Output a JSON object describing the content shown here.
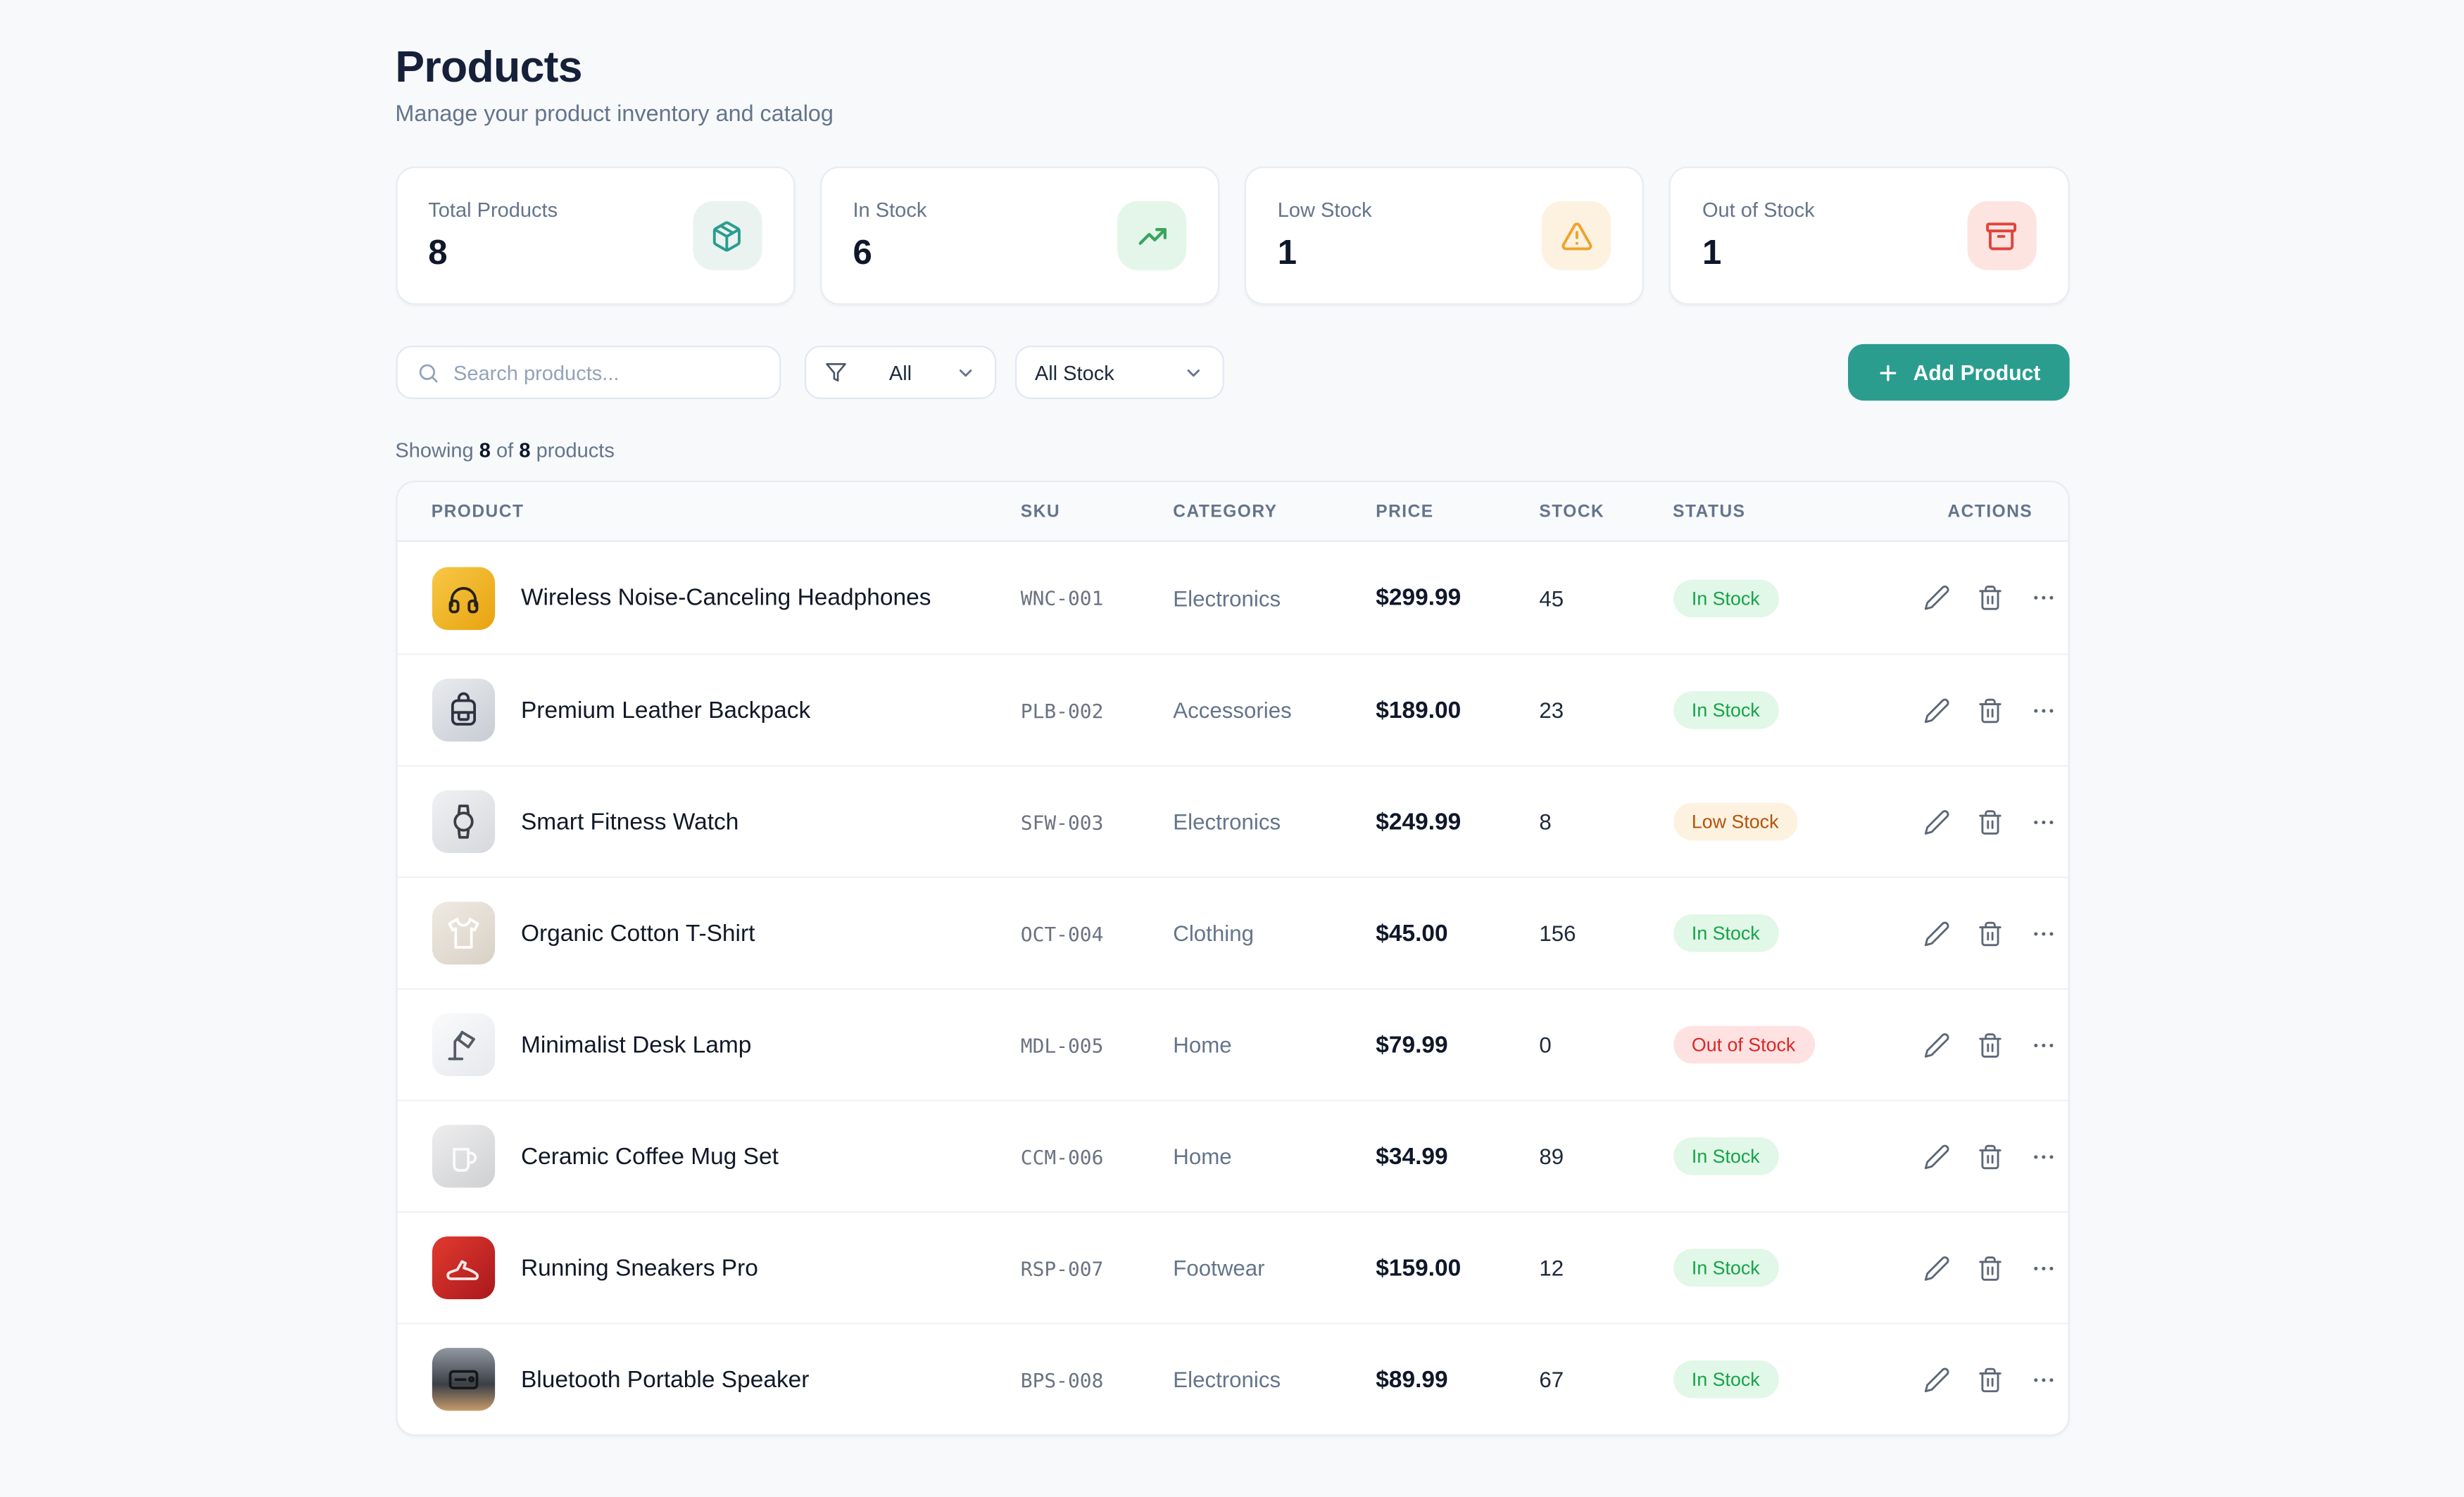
{
  "page": {
    "title": "Products",
    "subtitle": "Manage your product inventory and catalog",
    "background_color": "#f7f9fb",
    "accent_color": "#2a9d8f"
  },
  "stats": {
    "cards": [
      {
        "label": "Total Products",
        "value": "8",
        "icon": "package-icon",
        "icon_color": "#2a9d8f",
        "icon_bg": "#eaf3f0"
      },
      {
        "label": "In Stock",
        "value": "6",
        "icon": "trending-up-icon",
        "icon_color": "#3ba45f",
        "icon_bg": "#e4f6e9"
      },
      {
        "label": "Low Stock",
        "value": "1",
        "icon": "alert-triangle-icon",
        "icon_color": "#efa32b",
        "icon_bg": "#fdf1e0"
      },
      {
        "label": "Out of Stock",
        "value": "1",
        "icon": "archive-icon",
        "icon_color": "#e0443c",
        "icon_bg": "#fde4e1"
      }
    ]
  },
  "toolbar": {
    "search_placeholder": "Search products...",
    "category_filter": {
      "value": "All",
      "icon": "filter-icon"
    },
    "stock_filter": {
      "value": "All Stock"
    },
    "add_button_label": "Add Product",
    "add_button_color": "#2a9d8f"
  },
  "summary": {
    "prefix": "Showing",
    "shown": "8",
    "middle": "of",
    "total": "8",
    "suffix": "products"
  },
  "table": {
    "columns": [
      "Product",
      "SKU",
      "Category",
      "Price",
      "Stock",
      "Status",
      "Actions"
    ],
    "status_colors": {
      "In Stock": {
        "bg": "#e1f7e7",
        "text": "#16a34a"
      },
      "Low Stock": {
        "bg": "#fdf1e0",
        "text": "#b45309"
      },
      "Out of Stock": {
        "bg": "#fee2e2",
        "text": "#dc2626"
      }
    },
    "products": [
      {
        "name": "Wireless Noise-Canceling Headphones",
        "sku": "WNC-001",
        "category": "Electronics",
        "price": "$299.99",
        "stock": "45",
        "status": "In Stock",
        "status_variant": "in",
        "thumb": {
          "icon": "headphones-icon",
          "gradient": "linear-gradient(135deg,#f7c846,#e8a30f)",
          "fg": "#26221c"
        }
      },
      {
        "name": "Premium Leather Backpack",
        "sku": "PLB-002",
        "category": "Accessories",
        "price": "$189.00",
        "stock": "23",
        "status": "In Stock",
        "status_variant": "in",
        "thumb": {
          "icon": "backpack-icon",
          "gradient": "linear-gradient(145deg,#e9ebef,#c7ccd3)",
          "fg": "#2c3340"
        }
      },
      {
        "name": "Smart Fitness Watch",
        "sku": "SFW-003",
        "category": "Electronics",
        "price": "$249.99",
        "stock": "8",
        "status": "Low Stock",
        "status_variant": "low",
        "thumb": {
          "icon": "watch-icon",
          "gradient": "linear-gradient(145deg,#f0f1f3,#d5d8dd)",
          "fg": "#3a3f47"
        }
      },
      {
        "name": "Organic Cotton T-Shirt",
        "sku": "OCT-004",
        "category": "Clothing",
        "price": "$45.00",
        "stock": "156",
        "status": "In Stock",
        "status_variant": "in",
        "thumb": {
          "icon": "tshirt-icon",
          "gradient": "linear-gradient(145deg,#efeae2,#d8d1c6)",
          "fg": "#fdfdfc"
        }
      },
      {
        "name": "Minimalist Desk Lamp",
        "sku": "MDL-005",
        "category": "Home",
        "price": "$79.99",
        "stock": "0",
        "status": "Out of Stock",
        "status_variant": "out",
        "thumb": {
          "icon": "desk-lamp-icon",
          "gradient": "linear-gradient(145deg,#fbfbfc,#e5e8ed)",
          "fg": "#555b66"
        }
      },
      {
        "name": "Ceramic Coffee Mug Set",
        "sku": "CCM-006",
        "category": "Home",
        "price": "$34.99",
        "stock": "89",
        "status": "In Stock",
        "status_variant": "in",
        "thumb": {
          "icon": "mug-icon",
          "gradient": "linear-gradient(145deg,#ededee,#cfd0d2)",
          "fg": "#fafafa"
        }
      },
      {
        "name": "Running Sneakers Pro",
        "sku": "RSP-007",
        "category": "Footwear",
        "price": "$159.00",
        "stock": "12",
        "status": "In Stock",
        "status_variant": "in",
        "thumb": {
          "icon": "sneaker-icon",
          "gradient": "linear-gradient(135deg,#e23a2e,#a9181d)",
          "fg": "#f6e9e7"
        }
      },
      {
        "name": "Bluetooth Portable Speaker",
        "sku": "BPS-008",
        "category": "Electronics",
        "price": "$89.99",
        "stock": "67",
        "status": "In Stock",
        "status_variant": "in",
        "thumb": {
          "icon": "speaker-icon",
          "gradient": "linear-gradient(180deg,#9298a1 0%,#3b4047 58%,#c79b6c 100%)",
          "fg": "#15171b"
        }
      }
    ],
    "row_actions": [
      {
        "label": "edit",
        "icon": "pencil-icon"
      },
      {
        "label": "delete",
        "icon": "trash-icon"
      },
      {
        "label": "more",
        "icon": "ellipsis-icon"
      }
    ]
  }
}
